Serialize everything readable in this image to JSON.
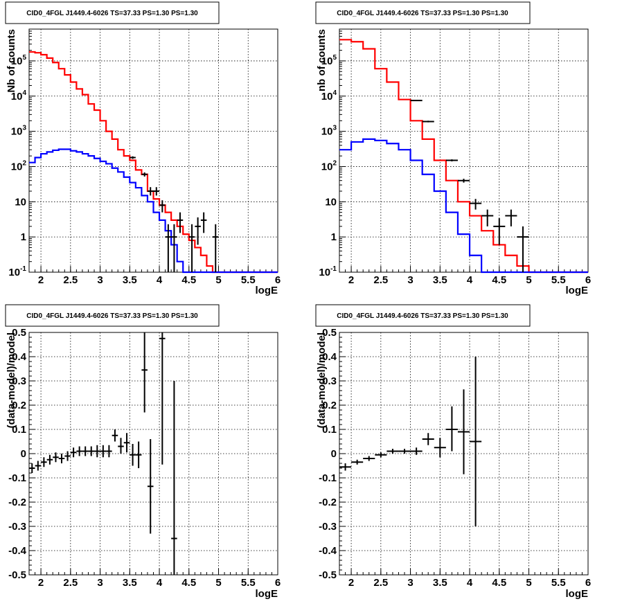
{
  "chart_data": [
    {
      "type": "histogram-line",
      "title": "CID0_4FGL J1449.4-6026 TS=37.33 PS=1.30 PS=1.30",
      "xlabel": "logE",
      "ylabel": "Nb of counts",
      "xlim": [
        1.8,
        6.0
      ],
      "ylim": [
        0.1,
        800000
      ],
      "yscale": "log",
      "x_ticks": [
        "2",
        "2.5",
        "3",
        "3.5",
        "4",
        "4.5",
        "5",
        "5.5",
        "6"
      ],
      "y_ticks": [
        "10^-1",
        "1",
        "10",
        "10^2",
        "10^3",
        "10^4",
        "10^5"
      ],
      "grid": true,
      "colors": {
        "total_model": "#ff0000",
        "source_model": "#0000ff",
        "data": "#000000"
      },
      "bin_edges": [
        1.8,
        1.9,
        2.0,
        2.1,
        2.2,
        2.3,
        2.4,
        2.5,
        2.6,
        2.7,
        2.8,
        2.9,
        3.0,
        3.1,
        3.2,
        3.3,
        3.4,
        3.5,
        3.6,
        3.7,
        3.8,
        3.9,
        4.0,
        4.1,
        4.2,
        4.3,
        4.4,
        4.5,
        4.6,
        4.7,
        4.8,
        4.9,
        5.0,
        5.1,
        5.2,
        5.3,
        5.4,
        5.5,
        5.6,
        5.7,
        5.8,
        5.9,
        6.0
      ],
      "series": [
        {
          "key": "total_model",
          "values": [
            180000,
            170000,
            150000,
            120000,
            90000,
            60000,
            40000,
            25000,
            16000,
            11000,
            6000,
            4000,
            2000,
            1000,
            600,
            300,
            200,
            150,
            80,
            60,
            20,
            12,
            8,
            5,
            3,
            2,
            1.2,
            0.8,
            0.5,
            0.3,
            0.15,
            0.1,
            0.1,
            0.1,
            0.1,
            0.1,
            0.1,
            0.1,
            0.1,
            0.1,
            0.1,
            0.1
          ]
        },
        {
          "key": "source_model",
          "values": [
            130,
            180,
            230,
            260,
            290,
            310,
            310,
            280,
            260,
            230,
            200,
            170,
            140,
            120,
            90,
            70,
            50,
            35,
            25,
            15,
            10,
            5,
            3,
            1.5,
            0.6,
            0.2,
            0.1,
            0.1,
            0.1,
            0.1,
            0.1,
            0.1,
            0.1,
            0.1,
            0.1,
            0.1,
            0.1,
            0.1,
            0.1,
            0.1,
            0.1,
            0.1
          ]
        }
      ],
      "points": [
        {
          "x": 3.55,
          "y": 180,
          "ylo": 165,
          "yhi": 195
        },
        {
          "x": 3.75,
          "y": 60,
          "ylo": 52,
          "yhi": 68
        },
        {
          "x": 3.85,
          "y": 20,
          "ylo": 15,
          "yhi": 26
        },
        {
          "x": 3.95,
          "y": 20,
          "ylo": 15,
          "yhi": 26
        },
        {
          "x": 4.05,
          "y": 8,
          "ylo": 5,
          "yhi": 11
        },
        {
          "x": 4.15,
          "y": 1,
          "ylo": 0.1,
          "yhi": 2.3
        },
        {
          "x": 4.25,
          "y": 1,
          "ylo": 0.1,
          "yhi": 2.3
        },
        {
          "x": 4.35,
          "y": 3,
          "ylo": 1.3,
          "yhi": 5
        },
        {
          "x": 4.55,
          "y": 1,
          "ylo": 0.1,
          "yhi": 2.3
        },
        {
          "x": 4.65,
          "y": 2,
          "ylo": 0.6,
          "yhi": 3.6
        },
        {
          "x": 4.75,
          "y": 3,
          "ylo": 1.3,
          "yhi": 5
        },
        {
          "x": 4.95,
          "y": 1,
          "ylo": 0.1,
          "yhi": 2.3
        }
      ],
      "x_halfwidth": 0.05
    },
    {
      "type": "histogram-line",
      "title": "CID0_4FGL J1449.4-6026 TS=37.33 PS=1.30 PS=1.30",
      "xlabel": "logE",
      "ylabel": "nb of counts",
      "xlim": [
        1.8,
        6.0
      ],
      "ylim": [
        0.1,
        800000
      ],
      "yscale": "log",
      "x_ticks": [
        "2",
        "2.5",
        "3",
        "3.5",
        "4",
        "4.5",
        "5",
        "5.5",
        "6"
      ],
      "y_ticks": [
        "10^-1",
        "1",
        "10",
        "10^2",
        "10^3",
        "10^4",
        "10^5"
      ],
      "grid": true,
      "colors": {
        "total_model": "#ff0000",
        "source_model": "#0000ff",
        "data": "#000000"
      },
      "bin_edges": [
        1.8,
        2.0,
        2.2,
        2.4,
        2.6,
        2.8,
        3.0,
        3.2,
        3.4,
        3.6,
        3.8,
        4.0,
        4.2,
        4.4,
        4.6,
        4.8,
        5.0,
        5.2,
        5.4,
        5.6,
        5.8,
        6.0
      ],
      "series": [
        {
          "key": "total_model",
          "values": [
            400000,
            350000,
            220000,
            60000,
            25000,
            8000,
            2000,
            600,
            150,
            40,
            10,
            4,
            1.5,
            0.6,
            0.3,
            0.15,
            0.1,
            0.1,
            0.1,
            0.1,
            0.1
          ]
        },
        {
          "key": "source_model",
          "values": [
            300,
            500,
            600,
            550,
            450,
            300,
            150,
            60,
            20,
            5,
            1.2,
            0.3,
            0.1,
            0.1,
            0.1,
            0.1,
            0.1,
            0.1,
            0.1,
            0.1,
            0.1
          ]
        }
      ],
      "points": [
        {
          "x": 3.1,
          "y": 7500,
          "ylo": 7300,
          "yhi": 7700
        },
        {
          "x": 3.3,
          "y": 1900,
          "ylo": 1800,
          "yhi": 2000
        },
        {
          "x": 3.7,
          "y": 150,
          "ylo": 140,
          "yhi": 160
        },
        {
          "x": 3.9,
          "y": 40,
          "ylo": 35,
          "yhi": 45
        },
        {
          "x": 4.1,
          "y": 9,
          "ylo": 6,
          "yhi": 12
        },
        {
          "x": 4.3,
          "y": 4,
          "ylo": 2,
          "yhi": 6
        },
        {
          "x": 4.5,
          "y": 2,
          "ylo": 0.6,
          "yhi": 3.4
        },
        {
          "x": 4.7,
          "y": 4,
          "ylo": 2,
          "yhi": 6
        },
        {
          "x": 4.9,
          "y": 1,
          "ylo": 0.1,
          "yhi": 2
        }
      ],
      "x_halfwidth": 0.1
    },
    {
      "type": "scatter",
      "title": "CID0_4FGL J1449.4-6026 TS=37.33 PS=1.30 PS=1.30",
      "xlabel": "logE",
      "ylabel": "(data-model)/model",
      "xlim": [
        1.8,
        6.0
      ],
      "ylim": [
        -0.5,
        0.5
      ],
      "x_ticks": [
        "2",
        "2.5",
        "3",
        "3.5",
        "4",
        "4.5",
        "5",
        "5.5",
        "6"
      ],
      "y_ticks": [
        "-0.5",
        "-0.4",
        "-0.3",
        "-0.2",
        "-0.1",
        "0",
        "0.1",
        "0.2",
        "0.3",
        "0.4",
        "0.5"
      ],
      "grid": true,
      "points": [
        {
          "x": 1.85,
          "y": -0.06,
          "ylo": -0.08,
          "yhi": -0.04
        },
        {
          "x": 1.95,
          "y": -0.05,
          "ylo": -0.07,
          "yhi": -0.03
        },
        {
          "x": 2.05,
          "y": -0.035,
          "ylo": -0.055,
          "yhi": -0.015
        },
        {
          "x": 2.15,
          "y": -0.025,
          "ylo": -0.045,
          "yhi": -0.005
        },
        {
          "x": 2.25,
          "y": -0.015,
          "ylo": -0.035,
          "yhi": 0.005
        },
        {
          "x": 2.35,
          "y": -0.02,
          "ylo": -0.04,
          "yhi": 0.0
        },
        {
          "x": 2.45,
          "y": -0.01,
          "ylo": -0.03,
          "yhi": 0.01
        },
        {
          "x": 2.55,
          "y": 0.005,
          "ylo": -0.015,
          "yhi": 0.025
        },
        {
          "x": 2.65,
          "y": 0.01,
          "ylo": -0.01,
          "yhi": 0.03
        },
        {
          "x": 2.75,
          "y": 0.01,
          "ylo": -0.01,
          "yhi": 0.03
        },
        {
          "x": 2.85,
          "y": 0.01,
          "ylo": -0.01,
          "yhi": 0.03
        },
        {
          "x": 2.95,
          "y": 0.01,
          "ylo": -0.015,
          "yhi": 0.035
        },
        {
          "x": 3.05,
          "y": 0.01,
          "ylo": -0.015,
          "yhi": 0.035
        },
        {
          "x": 3.15,
          "y": 0.01,
          "ylo": -0.015,
          "yhi": 0.035
        },
        {
          "x": 3.25,
          "y": 0.075,
          "ylo": 0.05,
          "yhi": 0.1
        },
        {
          "x": 3.35,
          "y": 0.03,
          "ylo": 0.0,
          "yhi": 0.065
        },
        {
          "x": 3.45,
          "y": 0.045,
          "ylo": 0.005,
          "yhi": 0.085
        },
        {
          "x": 3.55,
          "y": -0.005,
          "ylo": -0.05,
          "yhi": 0.04
        },
        {
          "x": 3.65,
          "y": -0.005,
          "ylo": -0.06,
          "yhi": 0.05
        },
        {
          "x": 3.75,
          "y": 0.345,
          "ylo": 0.17,
          "yhi": 0.5
        },
        {
          "x": 3.85,
          "y": -0.135,
          "ylo": -0.33,
          "yhi": 0.06
        },
        {
          "x": 4.05,
          "y": 0.475,
          "ylo": -0.045,
          "yhi": 0.5
        },
        {
          "x": 4.25,
          "y": -0.35,
          "ylo": -0.5,
          "yhi": 0.3
        }
      ],
      "x_halfwidth": 0.05
    },
    {
      "type": "scatter",
      "title": "CID0_4FGL J1449.4-6026 TS=37.33 PS=1.30 PS=1.30",
      "xlabel": "logE",
      "ylabel": "(data-model)/model",
      "xlim": [
        1.8,
        6.0
      ],
      "ylim": [
        -0.5,
        0.5
      ],
      "x_ticks": [
        "2",
        "2.5",
        "3",
        "3.5",
        "4",
        "4.5",
        "5",
        "5.5",
        "6"
      ],
      "y_ticks": [
        "-0.5",
        "-0.4",
        "-0.3",
        "-0.2",
        "-0.1",
        "0",
        "0.1",
        "0.2",
        "0.3",
        "0.4",
        "0.5"
      ],
      "grid": true,
      "points": [
        {
          "x": 1.9,
          "y": -0.055,
          "ylo": -0.07,
          "yhi": -0.04
        },
        {
          "x": 2.1,
          "y": -0.035,
          "ylo": -0.045,
          "yhi": -0.025
        },
        {
          "x": 2.3,
          "y": -0.02,
          "ylo": -0.03,
          "yhi": -0.01
        },
        {
          "x": 2.5,
          "y": -0.005,
          "ylo": -0.015,
          "yhi": 0.005
        },
        {
          "x": 2.7,
          "y": 0.01,
          "ylo": 0.0,
          "yhi": 0.02
        },
        {
          "x": 2.9,
          "y": 0.01,
          "ylo": 0.0,
          "yhi": 0.02
        },
        {
          "x": 3.1,
          "y": 0.01,
          "ylo": -0.005,
          "yhi": 0.025
        },
        {
          "x": 3.3,
          "y": 0.06,
          "ylo": 0.035,
          "yhi": 0.085
        },
        {
          "x": 3.5,
          "y": 0.025,
          "ylo": -0.015,
          "yhi": 0.065
        },
        {
          "x": 3.7,
          "y": 0.1,
          "ylo": 0.01,
          "yhi": 0.195
        },
        {
          "x": 3.9,
          "y": 0.09,
          "ylo": -0.085,
          "yhi": 0.265
        },
        {
          "x": 4.1,
          "y": 0.05,
          "ylo": -0.3,
          "yhi": 0.4
        }
      ],
      "x_halfwidth": 0.1
    }
  ]
}
